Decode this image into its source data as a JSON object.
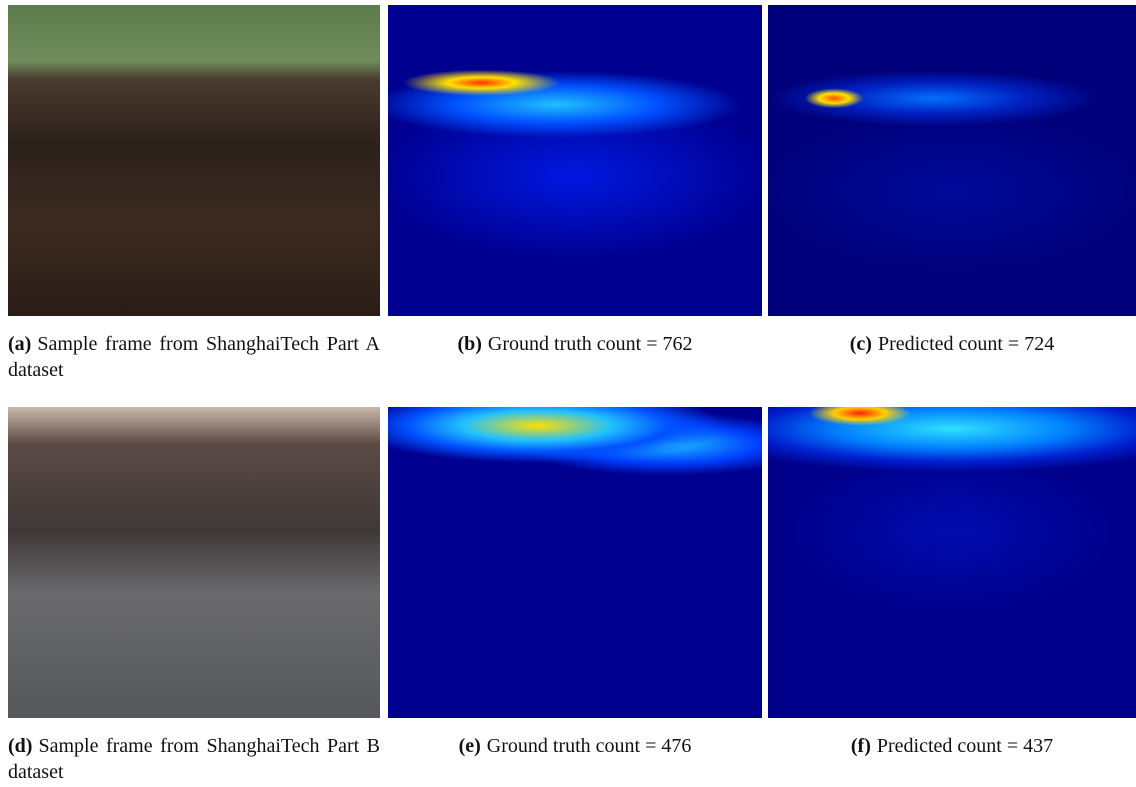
{
  "panels": [
    {
      "label": "(a)",
      "caption": "Sample frame from ShanghaiTech Part A dataset"
    },
    {
      "label": "(b)",
      "caption": "Ground truth count = 762"
    },
    {
      "label": "(c)",
      "caption": "Predicted count = 724"
    },
    {
      "label": "(d)",
      "caption": "Sample frame from ShanghaiTech Part B dataset"
    },
    {
      "label": "(e)",
      "caption": "Ground truth count = 476"
    },
    {
      "label": "(f)",
      "caption": "Predicted count = 437"
    }
  ]
}
